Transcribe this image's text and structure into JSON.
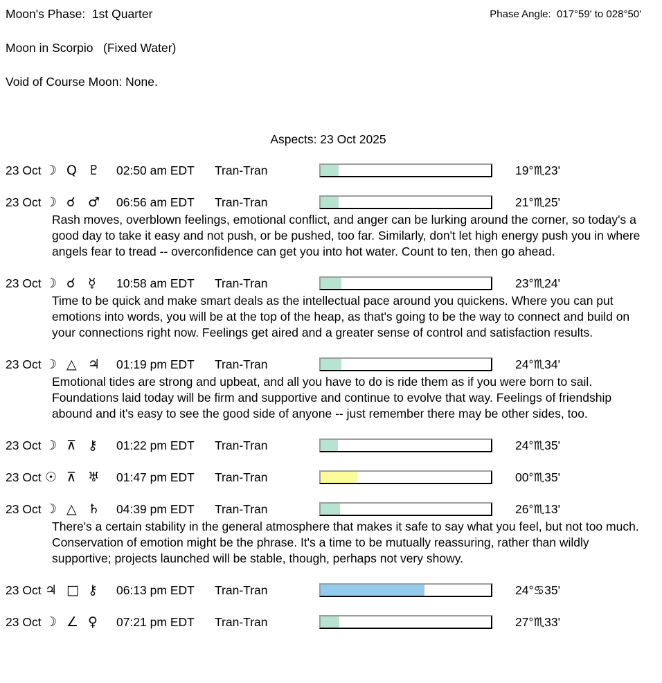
{
  "header": {
    "moon_phase": "Moon's Phase:  1st Quarter",
    "phase_angle": "Phase Angle:  017°59' to 028°50'",
    "moon_sign": "Moon in Scorpio   (Fixed Water)",
    "void_of_course": "Void of Course Moon: None."
  },
  "colors": {
    "teal": "#b7e4d0",
    "yellow": "#fbfb9b",
    "blue": "#92cbec"
  },
  "aspects": {
    "title": "Aspects: 23 Oct 2025",
    "rows": [
      {
        "date": "23 Oct",
        "body1": {
          "name": "moon",
          "glyph": "☽"
        },
        "aspect": {
          "name": "quintile",
          "glyph": "Q"
        },
        "body2": {
          "name": "pluto",
          "glyph": "♇"
        },
        "time": "02:50 am EDT",
        "type": "Tran-Tran",
        "orb_bar": {
          "fill_pct": 10.5,
          "color_key": "teal"
        },
        "position": "19°♏23'"
      },
      {
        "date": "23 Oct",
        "body1": {
          "name": "moon",
          "glyph": "☽"
        },
        "aspect": {
          "name": "conjunction",
          "glyph": "☌"
        },
        "body2": {
          "name": "mars",
          "glyph": "♂"
        },
        "time": "06:56 am EDT",
        "type": "Tran-Tran",
        "orb_bar": {
          "fill_pct": 10.5,
          "color_key": "teal"
        },
        "position": "21°♏25'",
        "text": "Rash moves, overblown feelings, emotional conflict, and anger can be lurking around the corner, so today's a good day to take it easy and not push, or be pushed, too far. Similarly, don't let high energy push you in where angels fear to tread -- overconfidence can get you into hot water. Count to ten, then go ahead."
      },
      {
        "date": "23 Oct",
        "body1": {
          "name": "moon",
          "glyph": "☽"
        },
        "aspect": {
          "name": "conjunction",
          "glyph": "☌"
        },
        "body2": {
          "name": "mercury",
          "glyph": "☿"
        },
        "time": "10:58 am EDT",
        "type": "Tran-Tran",
        "orb_bar": {
          "fill_pct": 12,
          "color_key": "teal"
        },
        "position": "23°♏24'",
        "text": "Time to be quick and make smart deals as the intellectual pace around you quickens. Where you can put emotions into words, you will be at the top of the heap, as that's going to be the way to connect and build on your connections right now. Feelings get aired and a greater sense of control and satisfaction results."
      },
      {
        "date": "23 Oct",
        "body1": {
          "name": "moon",
          "glyph": "☽"
        },
        "aspect": {
          "name": "trine",
          "glyph": "△"
        },
        "body2": {
          "name": "jupiter",
          "glyph": "♃"
        },
        "time": "01:19 pm EDT",
        "type": "Tran-Tran",
        "orb_bar": {
          "fill_pct": 12,
          "color_key": "teal"
        },
        "position": "24°♏34'",
        "text": "Emotional tides are strong and upbeat, and all you have to do is ride them as if you were born to sail. Foundations laid today will be firm and supportive and continue to evolve that way. Feelings of friendship abound and it's easy to see the good side of anyone -- just remember there may be other sides, too."
      },
      {
        "date": "23 Oct",
        "body1": {
          "name": "moon",
          "glyph": "☽"
        },
        "aspect": {
          "name": "quincunx",
          "glyph": "⊼"
        },
        "body2": {
          "name": "chiron",
          "glyph": "⚷"
        },
        "time": "01:22 pm EDT",
        "type": "Tran-Tran",
        "orb_bar": {
          "fill_pct": 10,
          "color_key": "teal"
        },
        "position": "24°♏35'"
      },
      {
        "date": "23 Oct",
        "body1": {
          "name": "sun",
          "glyph": "☉"
        },
        "aspect": {
          "name": "quincunx",
          "glyph": "⊼"
        },
        "body2": {
          "name": "uranus",
          "glyph": "♅"
        },
        "time": "01:47 pm EDT",
        "type": "Tran-Tran",
        "orb_bar": {
          "fill_pct": 21.5,
          "color_key": "yellow"
        },
        "position": "00°♏35'"
      },
      {
        "date": "23 Oct",
        "body1": {
          "name": "moon",
          "glyph": "☽"
        },
        "aspect": {
          "name": "trine",
          "glyph": "△"
        },
        "body2": {
          "name": "saturn",
          "glyph": "♄"
        },
        "time": "04:39 pm EDT",
        "type": "Tran-Tran",
        "orb_bar": {
          "fill_pct": 11.5,
          "color_key": "teal"
        },
        "position": "26°♏13'",
        "text": "There's a certain stability in the general atmosphere that makes it safe to say what you feel, but not too much. Conservation of emotion might be the phrase. It's a time to be mutually reassuring, rather than wildly supportive; projects launched will be stable, though, perhaps not very showy."
      },
      {
        "date": "23 Oct",
        "body1": {
          "name": "jupiter",
          "glyph": "♃"
        },
        "aspect": {
          "name": "square",
          "glyph": "□"
        },
        "body2": {
          "name": "chiron",
          "glyph": "⚷"
        },
        "time": "06:13 pm EDT",
        "type": "Tran-Tran",
        "orb_bar": {
          "fill_pct": 61,
          "color_key": "blue"
        },
        "position": "24°♋35'"
      },
      {
        "date": "23 Oct",
        "body1": {
          "name": "moon",
          "glyph": "☽"
        },
        "aspect": {
          "name": "semisquare",
          "glyph": "∠"
        },
        "body2": {
          "name": "venus",
          "glyph": "♀"
        },
        "time": "07:21 pm EDT",
        "type": "Tran-Tran",
        "orb_bar": {
          "fill_pct": 11,
          "color_key": "teal"
        },
        "position": "27°♏33'"
      }
    ]
  }
}
